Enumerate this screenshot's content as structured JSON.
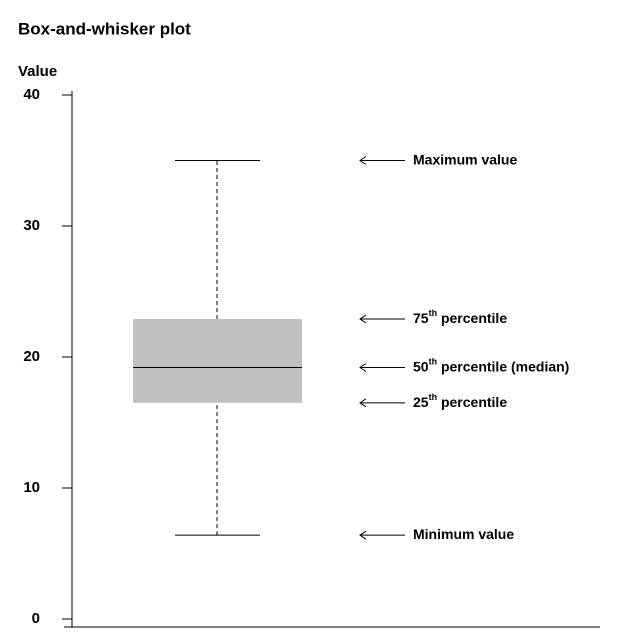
{
  "chart_data": {
    "type": "box",
    "title": "Box-and-whisker plot",
    "ylabel": "Value",
    "ylim": [
      0,
      40
    ],
    "yticks": [
      0,
      10,
      20,
      30,
      40
    ],
    "values": {
      "min": 6.4,
      "q1": 16.5,
      "median": 19.2,
      "q3": 22.9,
      "max": 35
    },
    "color": "#c0c0c0",
    "annotations": [
      {
        "stat": "max",
        "pre": "Maximum value"
      },
      {
        "stat": "q3",
        "pre": "75",
        "sup": "th",
        "post": " percentile"
      },
      {
        "stat": "median",
        "pre": "50",
        "sup": "th",
        "post": " percentile (median)"
      },
      {
        "stat": "q1",
        "pre": "25",
        "sup": "th",
        "post": " percentile"
      },
      {
        "stat": "min",
        "pre": "Minimum value"
      }
    ]
  }
}
